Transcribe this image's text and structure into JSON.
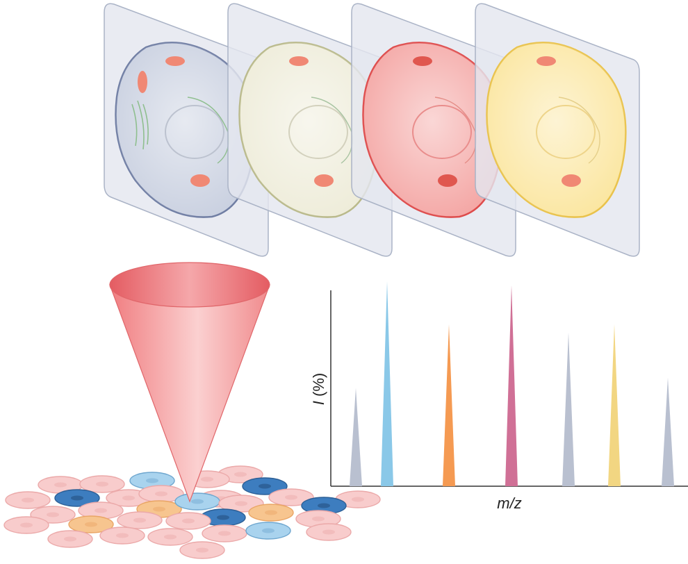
{
  "figure": {
    "panels_count": 4,
    "panel_colors": [
      {
        "name": "gray-blue",
        "fill": "#c9d0e0",
        "stroke": "#6f7da3"
      },
      {
        "name": "cream",
        "fill": "#eeecd9",
        "stroke": "#b9b98a"
      },
      {
        "name": "red",
        "fill": "#f4a6a4",
        "stroke": "#de4a4a"
      },
      {
        "name": "yellow",
        "fill": "#fbe6a0",
        "stroke": "#e9c24a"
      }
    ],
    "cone_color": "#f08a8c",
    "cell_colors": {
      "pink": "#f8cccc",
      "blue": "#a9d3ee",
      "dark_blue": "#3d7dbf",
      "orange": "#f7c58f"
    }
  },
  "spectrum": {
    "ylabel_italic": "I",
    "ylabel_rest": " (%)",
    "xlabel": "m/z",
    "peaks": [
      {
        "relative_intensity": 0.48,
        "color": "#b9c0d0"
      },
      {
        "relative_intensity": 1.0,
        "color": "#8ac8e8"
      },
      {
        "relative_intensity": 0.79,
        "color": "#f59a52"
      },
      {
        "relative_intensity": 0.98,
        "color": "#d07096"
      },
      {
        "relative_intensity": 0.75,
        "color": "#b9c0d0"
      },
      {
        "relative_intensity": 0.79,
        "color": "#f2d682"
      },
      {
        "relative_intensity": 0.53,
        "color": "#b9c0d0"
      }
    ]
  }
}
